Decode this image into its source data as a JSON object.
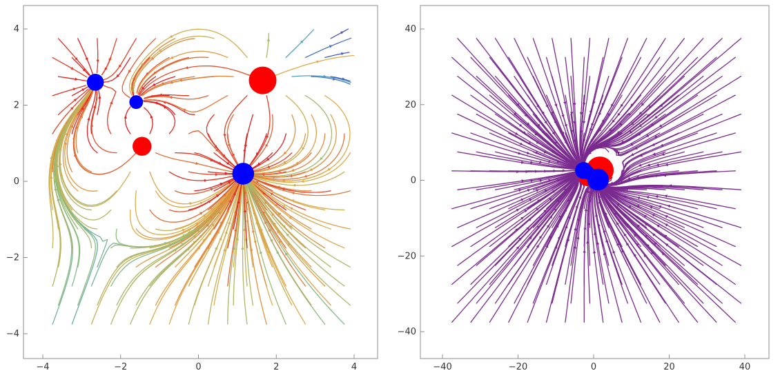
{
  "chart_data": [
    {
      "type": "streamplot",
      "title": "",
      "xlabel": "",
      "ylabel": "",
      "xlim": [
        -4,
        4
      ],
      "ylim": [
        -4,
        4
      ],
      "xticks": [
        -4,
        -2,
        0,
        2,
        4
      ],
      "yticks": [
        -4,
        -2,
        0,
        2,
        4
      ],
      "xtick_labels": [
        "−4",
        "−2",
        "0",
        "2",
        "4"
      ],
      "ytick_labels": [
        "−4",
        "−2",
        "0",
        "2",
        "4"
      ],
      "grid": false,
      "colored_by_magnitude": true,
      "charges": [
        {
          "x": 1.65,
          "y": 2.65,
          "sign": "positive",
          "size": 1.0,
          "color": "#ff0000"
        },
        {
          "x": -1.45,
          "y": 0.92,
          "sign": "positive",
          "size": 0.55,
          "color": "#ff0000"
        },
        {
          "x": 1.15,
          "y": 0.2,
          "sign": "negative",
          "size": 0.7,
          "color": "#0000ff"
        },
        {
          "x": -2.65,
          "y": 2.6,
          "sign": "negative",
          "size": 0.45,
          "color": "#0000ff"
        },
        {
          "x": -1.6,
          "y": 2.08,
          "sign": "negative",
          "size": 0.28,
          "color": "#0000ff"
        }
      ]
    },
    {
      "type": "streamplot",
      "title": "",
      "xlabel": "",
      "ylabel": "",
      "xlim": [
        -40,
        40
      ],
      "ylim": [
        -40,
        40
      ],
      "xticks": [
        -40,
        -20,
        0,
        20,
        40
      ],
      "yticks": [
        -40,
        -20,
        0,
        20,
        40
      ],
      "xtick_labels": [
        "−40",
        "−20",
        "0",
        "20",
        "40"
      ],
      "ytick_labels": [
        "−40",
        "−20",
        "0",
        "20",
        "40"
      ],
      "grid": false,
      "colored_by_magnitude": false,
      "line_color": "#7a2a8f",
      "charges": [
        {
          "x": 1.65,
          "y": 2.65,
          "sign": "positive",
          "size": 1.0,
          "color": "#ff0000"
        },
        {
          "x": -1.45,
          "y": 0.92,
          "sign": "positive",
          "size": 0.55,
          "color": "#ff0000"
        },
        {
          "x": 1.15,
          "y": 0.2,
          "sign": "negative",
          "size": 0.7,
          "color": "#0000ff"
        },
        {
          "x": -2.65,
          "y": 2.6,
          "sign": "negative",
          "size": 0.45,
          "color": "#0000ff"
        },
        {
          "x": -1.6,
          "y": 2.08,
          "sign": "negative",
          "size": 0.28,
          "color": "#0000ff"
        }
      ]
    }
  ]
}
